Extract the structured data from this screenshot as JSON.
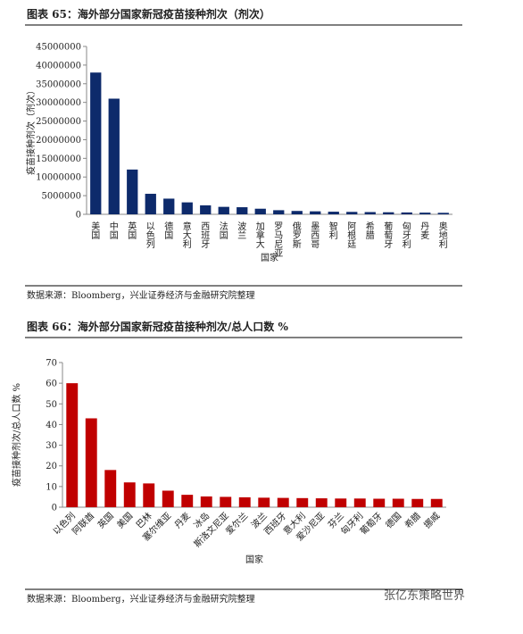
{
  "chart_data": [
    {
      "type": "bar",
      "title": "图表 65：海外部分国家新冠疫苗接种剂次（剂次）",
      "categories": [
        "美国",
        "中国",
        "英国",
        "以色列",
        "德国",
        "意大利",
        "西班牙",
        "法国",
        "波兰",
        "加拿大",
        "罗马尼亚",
        "俄罗斯",
        "墨西哥",
        "智利",
        "阿根廷",
        "希腊",
        "葡萄牙",
        "匈牙利",
        "丹麦",
        "奥地利"
      ],
      "values": [
        38000000,
        31000000,
        12000000,
        5500000,
        4200000,
        3200000,
        2400000,
        2000000,
        1900000,
        1500000,
        1100000,
        900000,
        800000,
        700000,
        650000,
        600000,
        550000,
        500000,
        450000,
        400000
      ],
      "color": "#0d2a6b",
      "ylim": [
        0,
        45000000
      ],
      "yticks": [
        0,
        5000000,
        10000000,
        15000000,
        20000000,
        25000000,
        30000000,
        35000000,
        40000000,
        45000000
      ],
      "ylabel": "疫苗接种剂次（剂次）",
      "xlabel": "国家",
      "source": "数据来源：Bloomberg，兴业证券经济与金融研究院整理"
    },
    {
      "type": "bar",
      "title": "图表 66：海外部分国家新冠疫苗接种剂次/总人口数  %",
      "categories": [
        "以色列",
        "阿联酋",
        "英国",
        "美国",
        "巴林",
        "塞尔维亚",
        "丹麦",
        "冰岛",
        "斯洛文尼亚",
        "爱尔兰",
        "波兰",
        "西班牙",
        "意大利",
        "爱沙尼亚",
        "芬兰",
        "匈牙利",
        "葡萄牙",
        "德国",
        "希腊",
        "挪威"
      ],
      "values": [
        60,
        43,
        18,
        12,
        11.5,
        8,
        6,
        5.2,
        5,
        4.8,
        4.6,
        4.5,
        4.4,
        4.3,
        4.2,
        4.2,
        4.1,
        4.1,
        4,
        4
      ],
      "color": "#c00000",
      "ylim": [
        0,
        70
      ],
      "yticks": [
        0,
        10,
        20,
        30,
        40,
        50,
        60,
        70
      ],
      "ylabel": "疫苗接种剂次/总人口数 %",
      "xlabel": "国家",
      "source": "数据来源：Bloomberg，兴业证券经济与金融研究院整理"
    }
  ],
  "watermark": "张亿东策略世界"
}
